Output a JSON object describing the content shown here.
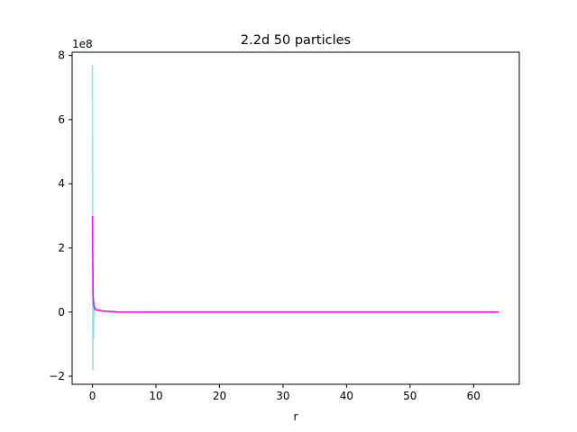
{
  "chart_data": {
    "type": "line",
    "title": "2.2d 50 particles",
    "xlabel": "r",
    "ylabel": "",
    "y_offset_label": "1e8",
    "y_scale": 100000000,
    "xlim": [
      -3.2,
      67.2
    ],
    "ylim": [
      -225000000,
      810000000
    ],
    "x_ticks": [
      0,
      10,
      20,
      30,
      40,
      50,
      60
    ],
    "y_ticks": [
      -2,
      0,
      2,
      4,
      6,
      8
    ],
    "grid": false,
    "legend": "none",
    "series": [
      {
        "color": "#00aaaa",
        "opacity": 0.4,
        "x": [
          0.0,
          0.06,
          0.12,
          0.18,
          0.24,
          0.3,
          0.6,
          1.0,
          2.0,
          4.0,
          10.0,
          20.0,
          30.0,
          40.0,
          50.0,
          60.0,
          64.0
        ],
        "y": [
          770000000,
          -180000000,
          150000000,
          -80000000,
          40000000,
          20000000,
          8000000,
          4000000,
          2000000,
          500000,
          200000,
          100000,
          50000,
          30000,
          20000,
          10000,
          10000
        ]
      },
      {
        "color": "#ff00ff",
        "opacity": 1,
        "x": [
          0.0,
          0.1,
          0.2,
          0.4,
          1.0,
          2.0,
          4.0,
          10.0,
          20.0,
          30.0,
          40.0,
          50.0,
          60.0,
          64.0
        ],
        "y": [
          300000000,
          50000000,
          20000000,
          8000000,
          6000000,
          3000000,
          600000,
          200000,
          100000,
          60000,
          40000,
          20000,
          10000,
          10000
        ]
      }
    ]
  }
}
